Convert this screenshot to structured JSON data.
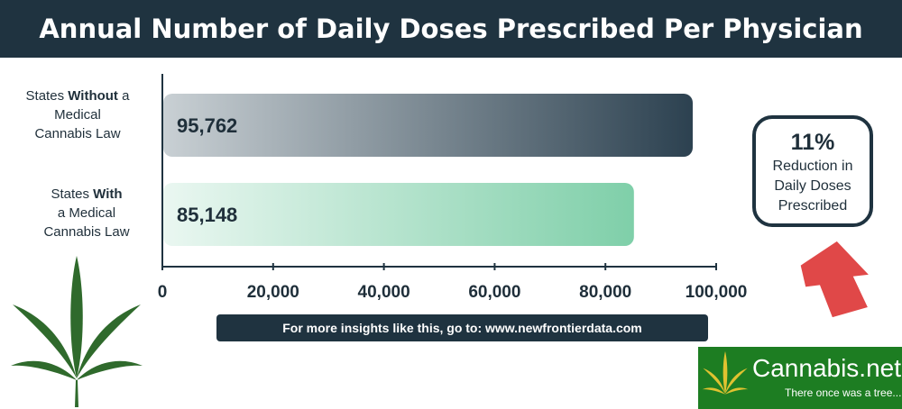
{
  "title": "Annual Number of Daily Doses Prescribed Per Physician",
  "chart_data": {
    "type": "bar",
    "orientation": "horizontal",
    "title": "Annual Number of Daily Doses Prescribed Per Physician",
    "categories": [
      [
        "States ",
        "Without",
        " a",
        "Medical",
        "Cannabis Law"
      ],
      [
        "States ",
        "With",
        "",
        "a Medical",
        "Cannabis Law"
      ]
    ],
    "values": [
      95762,
      85148
    ],
    "value_labels": [
      "95,762",
      "85,148"
    ],
    "xlim": [
      0,
      100000
    ],
    "xticks": [
      0,
      20000,
      40000,
      60000,
      80000,
      100000
    ],
    "xtick_labels": [
      "0",
      "20,000",
      "40,000",
      "60,000",
      "80,000",
      "100,000"
    ],
    "grid": false,
    "colors": {
      "bar_without": [
        "#c9d0d4",
        "#2c4150"
      ],
      "bar_with": [
        "#eaf7f1",
        "#7fcfa9"
      ]
    }
  },
  "callout": {
    "percent": "11%",
    "text": "Reduction in Daily Doses Prescribed"
  },
  "footer": "For more insights like this, go to: www.newfrontierdata.com",
  "logo": {
    "name": "Cannabis.net",
    "tagline": "There once was a tree..."
  },
  "colors": {
    "dark": "#1f3340",
    "arrow": "#e04848",
    "leaf": "#2f6a2c",
    "logo_bg": "#1d7d22"
  }
}
